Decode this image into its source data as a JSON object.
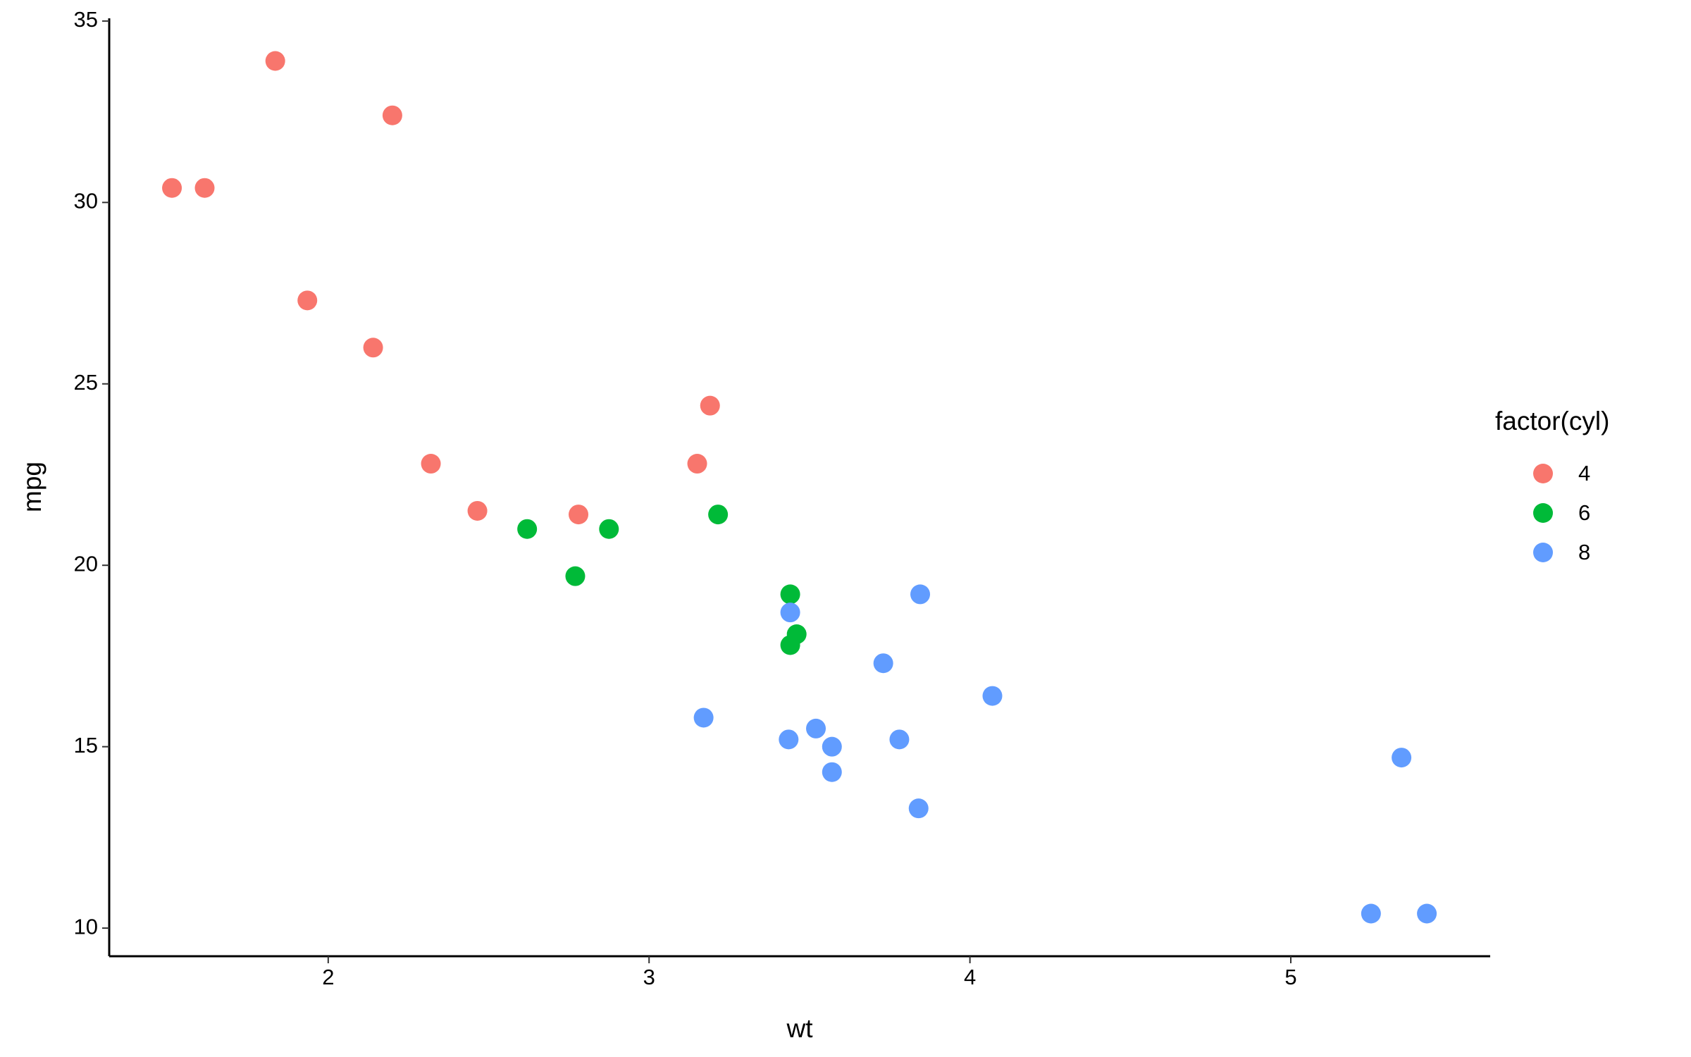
{
  "chart_data": {
    "type": "scatter",
    "x_label": "wt",
    "y_label": "mpg",
    "legend_title": "factor(cyl)",
    "legend_position": "right",
    "grid": false,
    "xlim": [
      1.31745,
      5.62145
    ],
    "ylim": [
      9.225,
      35.075
    ],
    "xticks": [
      2,
      3,
      4,
      5
    ],
    "yticks": [
      10,
      15,
      20,
      25,
      30,
      35
    ],
    "series": [
      {
        "name": "4",
        "color": "#F8766D",
        "x": [
          2.32,
          3.19,
          3.15,
          2.2,
          1.615,
          1.835,
          2.465,
          1.935,
          2.14,
          1.513,
          2.78
        ],
        "values": [
          22.8,
          24.4,
          22.8,
          32.4,
          30.4,
          33.9,
          21.5,
          27.3,
          26.0,
          30.4,
          21.4
        ]
      },
      {
        "name": "6",
        "color": "#00BA38",
        "x": [
          2.62,
          2.875,
          3.215,
          3.46,
          3.44,
          3.44,
          2.77
        ],
        "values": [
          21.0,
          21.0,
          21.4,
          18.1,
          19.2,
          17.8,
          19.7
        ]
      },
      {
        "name": "8",
        "color": "#619CFF",
        "x": [
          3.44,
          3.57,
          4.07,
          3.73,
          3.78,
          5.25,
          5.424,
          5.345,
          3.52,
          3.435,
          3.84,
          3.845,
          3.17,
          3.57
        ],
        "values": [
          18.7,
          14.3,
          16.4,
          17.3,
          15.2,
          10.4,
          10.4,
          14.7,
          15.5,
          15.2,
          13.3,
          19.2,
          15.8,
          15.0
        ]
      }
    ]
  }
}
